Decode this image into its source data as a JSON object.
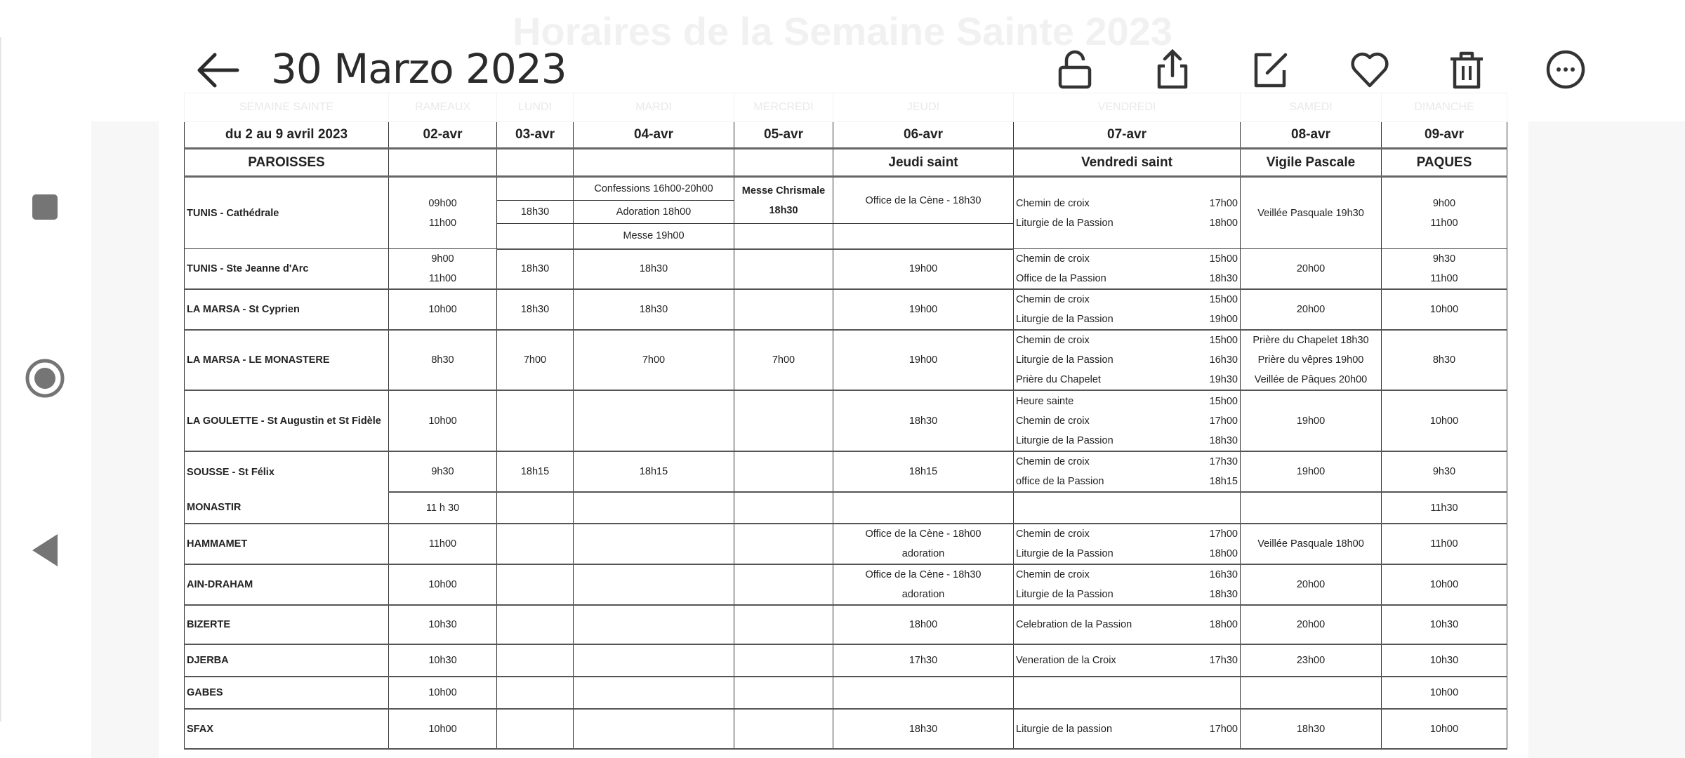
{
  "appbar": {
    "title": "30 Marzo 2023",
    "back_icon": "arrow-left-icon",
    "actions": [
      "lock-open-icon",
      "share-icon",
      "edit-icon",
      "heart-icon",
      "trash-icon",
      "more-icon"
    ]
  },
  "navbar": {
    "icons": [
      "square-stop-icon",
      "radio-record-icon",
      "triangle-back-icon"
    ]
  },
  "document": {
    "title": "Horaires de la Semaine Sainte 2023",
    "faded_header": [
      "SEMAINE SAINTE",
      "RAMEAUX",
      "LUNDI",
      "MARDI",
      "MERCREDI",
      "JEUDI",
      "VENDREDI",
      "SAMEDI",
      "DIMANCHE"
    ],
    "date_header": [
      "du 2 au 9 avril 2023",
      "02-avr",
      "03-avr",
      "04-avr",
      "05-avr",
      "06-avr",
      "07-avr",
      "08-avr",
      "09-avr"
    ],
    "feast_header": [
      "PAROISSES",
      "",
      "",
      "",
      "",
      "Jeudi saint",
      "Vendredi saint",
      "Vigile Pascale",
      "PAQUES"
    ],
    "rows": [
      {
        "parish": "TUNIS - Cathédrale",
        "rameaux": [
          "09h00",
          "11h00"
        ],
        "lundi": [
          "",
          "18h30",
          ""
        ],
        "mardi": [
          "Confessions  16h00-20h00",
          "Adoration  18h00",
          "Messe     19h00"
        ],
        "mercredi": [
          "Messe Chrismale",
          "18h30"
        ],
        "jeudi": [
          "Office de la Cène - 18h30"
        ],
        "vendredi": [
          [
            "Chemin de croix",
            "17h00"
          ],
          [
            "Liturgie de la Passion",
            "18h00"
          ]
        ],
        "samedi": [
          "Veillée Pasquale 19h30"
        ],
        "dimanche": [
          "9h00",
          "11h00"
        ]
      },
      {
        "parish": "TUNIS - Ste Jeanne d'Arc",
        "rameaux": [
          "9h00",
          "11h00"
        ],
        "lundi": [
          "18h30"
        ],
        "mardi": [
          "18h30"
        ],
        "mercredi": [],
        "jeudi": [
          "19h00"
        ],
        "vendredi": [
          [
            "Chemin de croix",
            "15h00"
          ],
          [
            "Office de la Passion",
            "18h30"
          ]
        ],
        "samedi": [
          "20h00"
        ],
        "dimanche": [
          "9h30",
          "11h00"
        ]
      },
      {
        "parish": "LA MARSA - St Cyprien",
        "rameaux": [
          "10h00"
        ],
        "lundi": [
          "18h30"
        ],
        "mardi": [
          "18h30"
        ],
        "mercredi": [],
        "jeudi": [
          "19h00"
        ],
        "vendredi": [
          [
            "Chemin de croix",
            "15h00"
          ],
          [
            "Liturgie de la Passion",
            "19h00"
          ]
        ],
        "samedi": [
          "20h00"
        ],
        "dimanche": [
          "10h00"
        ]
      },
      {
        "parish": "LA MARSA - LE MONASTERE",
        "rameaux": [
          "8h30"
        ],
        "lundi": [
          "7h00"
        ],
        "mardi": [
          "7h00"
        ],
        "mercredi": [
          "7h00"
        ],
        "jeudi": [
          "19h00"
        ],
        "vendredi": [
          [
            "Chemin de croix",
            "15h00"
          ],
          [
            "Liturgie de la Passion",
            "16h30"
          ],
          [
            "Prière du Chapelet",
            "19h30"
          ]
        ],
        "samedi": [
          "Prière du Chapelet  18h30",
          "Prière du vêpres      19h00",
          "Veillée de Pâques    20h00"
        ],
        "dimanche": [
          "8h30"
        ]
      },
      {
        "parish": "LA GOULETTE - St Augustin et St Fidèle",
        "rameaux": [
          "10h00"
        ],
        "lundi": [],
        "mardi": [],
        "mercredi": [],
        "jeudi": [
          "18h30"
        ],
        "vendredi": [
          [
            "Heure sainte",
            "15h00"
          ],
          [
            "Chemin de croix",
            "17h00"
          ],
          [
            "Liturgie de la Passion",
            "18h30"
          ]
        ],
        "samedi": [
          "19h00"
        ],
        "dimanche": [
          "10h00"
        ]
      },
      {
        "parish": "SOUSSE - St Félix",
        "rameaux": [
          "9h30"
        ],
        "lundi": [
          "18h15"
        ],
        "mardi": [
          "18h15"
        ],
        "mercredi": [],
        "jeudi": [
          "18h15"
        ],
        "vendredi": [
          [
            "Chemin de croix",
            "17h30"
          ],
          [
            "office de la Passion",
            "18h15"
          ]
        ],
        "samedi": [
          "19h00"
        ],
        "dimanche": [
          "9h30"
        ]
      },
      {
        "parish": "MONASTIR",
        "rameaux": [
          "11 h 30"
        ],
        "lundi": [],
        "mardi": [],
        "mercredi": [],
        "jeudi": [],
        "vendredi": [],
        "samedi": [],
        "dimanche": [
          "11h30"
        ]
      },
      {
        "parish": "HAMMAMET",
        "rameaux": [
          "11h00"
        ],
        "lundi": [],
        "mardi": [],
        "mercredi": [],
        "jeudi": [
          "Office de la Cène - 18h00",
          "adoration"
        ],
        "vendredi": [
          [
            "Chemin de croix",
            "17h00"
          ],
          [
            "Liturgie de la Passion",
            "18h00"
          ]
        ],
        "samedi": [
          "Veillée Pasquale 18h00"
        ],
        "dimanche": [
          "11h00"
        ]
      },
      {
        "parish": "AIN-DRAHAM",
        "rameaux": [
          "10h00"
        ],
        "lundi": [],
        "mardi": [],
        "mercredi": [],
        "jeudi": [
          "Office de la Cène - 18h30",
          "adoration"
        ],
        "vendredi": [
          [
            "Chemin de croix",
            "16h30"
          ],
          [
            "Liturgie de la Passion",
            "18h30"
          ]
        ],
        "samedi": [
          "20h00"
        ],
        "dimanche": [
          "10h00"
        ]
      },
      {
        "parish": "BIZERTE",
        "rameaux": [
          "10h30"
        ],
        "lundi": [],
        "mardi": [],
        "mercredi": [],
        "jeudi": [
          "18h00"
        ],
        "vendredi": [
          [
            "Celebration de la  Passion",
            "18h00"
          ]
        ],
        "samedi": [
          "20h00"
        ],
        "dimanche": [
          "10h30"
        ]
      },
      {
        "parish": "DJERBA",
        "rameaux": [
          "10h30"
        ],
        "lundi": [],
        "mardi": [],
        "mercredi": [],
        "jeudi": [
          "17h30"
        ],
        "vendredi": [
          [
            "Veneration de la Croix",
            "17h30"
          ]
        ],
        "samedi": [
          "23h00"
        ],
        "dimanche": [
          "10h30"
        ]
      },
      {
        "parish": "GABES",
        "rameaux": [
          "10h00"
        ],
        "lundi": [],
        "mardi": [],
        "mercredi": [],
        "jeudi": [],
        "vendredi": [],
        "samedi": [],
        "dimanche": [
          "10h00"
        ]
      },
      {
        "parish": "SFAX",
        "rameaux": [
          "10h00"
        ],
        "lundi": [],
        "mardi": [],
        "mercredi": [],
        "jeudi": [
          "18h30"
        ],
        "vendredi": [
          [
            " Liturgie de la passion",
            "17h00"
          ]
        ],
        "samedi": [
          "18h30"
        ],
        "dimanche": [
          "10h00"
        ]
      }
    ]
  }
}
